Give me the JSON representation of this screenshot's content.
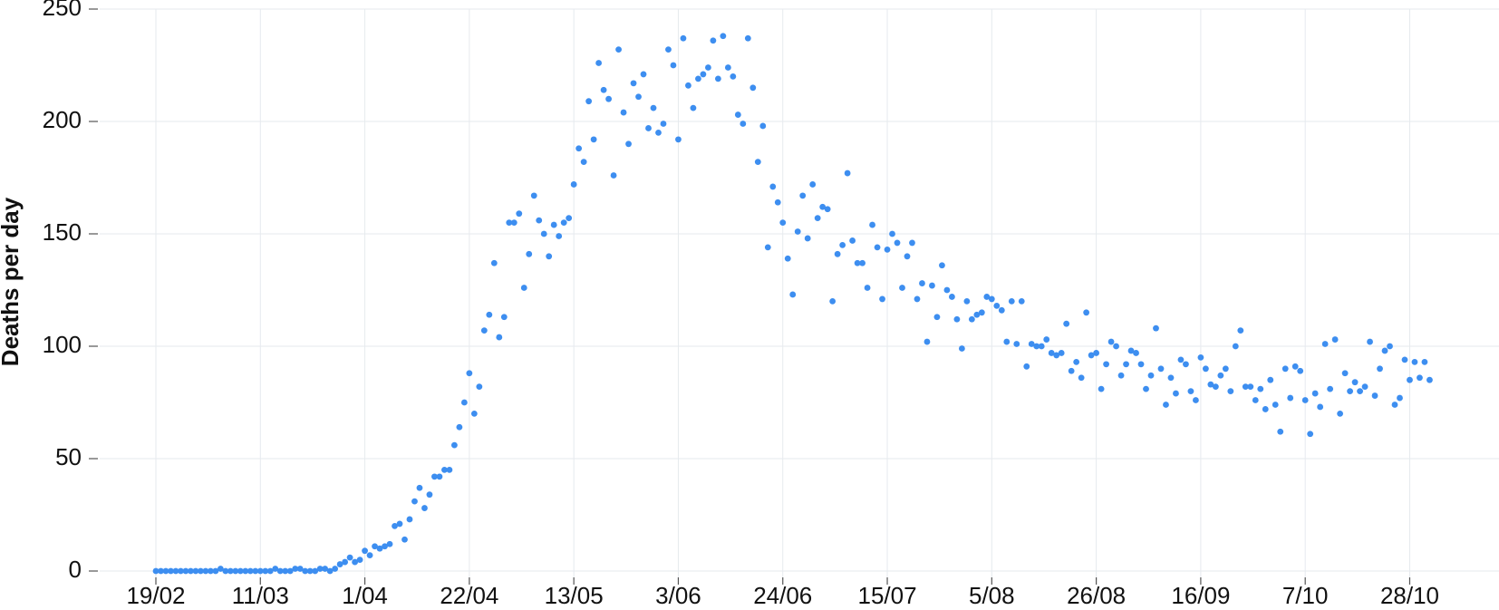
{
  "chart_data": {
    "type": "scatter",
    "ylabel": "Deaths per day",
    "xlabel": "",
    "ylim": [
      0,
      250
    ],
    "yticks": [
      0,
      50,
      100,
      150,
      200,
      250
    ],
    "xticks": [
      {
        "day": 0,
        "label": "19/02"
      },
      {
        "day": 21,
        "label": "11/03"
      },
      {
        "day": 42,
        "label": "1/04"
      },
      {
        "day": 63,
        "label": "22/04"
      },
      {
        "day": 84,
        "label": "13/05"
      },
      {
        "day": 105,
        "label": "3/06"
      },
      {
        "day": 126,
        "label": "24/06"
      },
      {
        "day": 147,
        "label": "15/07"
      },
      {
        "day": 168,
        "label": "5/08"
      },
      {
        "day": 189,
        "label": "26/08"
      },
      {
        "day": 210,
        "label": "16/09"
      },
      {
        "day": 231,
        "label": "7/10"
      },
      {
        "day": 252,
        "label": "28/10"
      }
    ],
    "grid": true,
    "marker_color": "#3d8ef0",
    "series": [
      {
        "x_start": "19/02",
        "values": [
          0,
          0,
          0,
          0,
          0,
          0,
          0,
          0,
          0,
          0,
          0,
          0,
          0,
          1,
          0,
          0,
          0,
          0,
          0,
          0,
          0,
          0,
          0,
          0,
          1,
          0,
          0,
          0,
          1,
          1,
          0,
          0,
          0,
          1,
          1,
          0,
          1,
          3,
          4,
          6,
          4,
          5,
          9,
          7,
          11,
          10,
          11,
          12,
          20,
          21,
          14,
          23,
          31,
          37,
          28,
          34,
          42,
          42,
          45,
          45,
          56,
          64,
          75,
          88,
          70,
          82,
          107,
          114,
          137,
          104,
          113,
          155,
          155,
          159,
          126,
          141,
          167,
          156,
          150,
          140,
          154,
          149,
          155,
          157,
          172,
          188,
          182,
          209,
          192,
          226,
          214,
          210,
          176,
          232,
          204,
          190,
          217,
          211,
          221,
          197,
          206,
          195,
          199,
          232,
          225,
          192,
          237,
          216,
          206,
          219,
          221,
          224,
          236,
          219,
          238,
          224,
          220,
          203,
          199,
          237,
          215,
          182,
          198,
          144,
          171,
          164,
          155,
          139,
          123,
          151,
          167,
          148,
          172,
          157,
          162,
          161,
          120,
          141,
          145,
          177,
          147,
          137,
          137,
          126,
          154,
          144,
          121,
          143,
          150,
          146,
          126,
          140,
          146,
          121,
          128,
          102,
          127,
          113,
          136,
          125,
          122,
          112,
          99,
          120,
          112,
          114,
          115,
          122,
          121,
          118,
          116,
          102,
          120,
          101,
          120,
          91,
          101,
          100,
          100,
          103,
          97,
          96,
          97,
          110,
          89,
          93,
          86,
          115,
          96,
          97,
          81,
          92,
          102,
          100,
          87,
          92,
          98,
          97,
          92,
          81,
          87,
          108,
          90,
          74,
          86,
          79,
          94,
          92,
          80,
          76,
          95,
          90,
          83,
          82,
          87,
          90,
          80,
          100,
          107,
          82,
          82,
          76,
          81,
          72,
          85,
          74,
          62,
          90,
          77,
          91,
          89,
          76,
          61,
          79,
          73,
          101,
          81,
          103,
          70,
          88,
          80,
          84,
          80,
          82,
          102,
          78,
          90,
          98,
          100,
          74,
          77,
          94,
          85,
          93,
          86,
          93,
          85
        ]
      }
    ]
  }
}
